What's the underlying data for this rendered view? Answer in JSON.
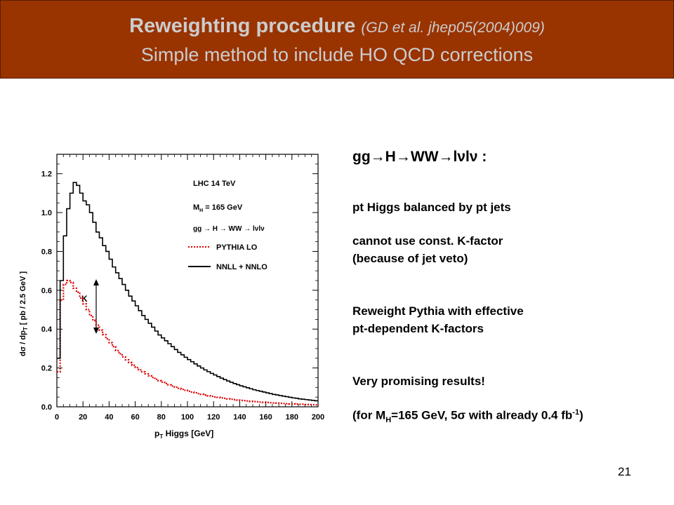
{
  "slide": {
    "title": "Reweighting procedure",
    "reference": "(GD et al. jhep05(2004)009)",
    "subtitle": "Simple method to include HO QCD corrections",
    "page_number": "21"
  },
  "notes": {
    "heading": "gg→H→WW→lνlν :",
    "line1": "pt Higgs balanced by pt jets",
    "line2": "cannot use const. K-factor",
    "line3": "(because of jet veto)",
    "line4": "Reweight Pythia with effective",
    "line5": "pt-dependent K-factors",
    "line6": "Very promising results!",
    "result_prefix": "(for M",
    "result_sub": "H",
    "result_mid": "=165 GeV, 5σ with already 0.4 fb",
    "result_sup": "-1",
    "result_suffix": ")"
  },
  "chart_data": {
    "type": "line",
    "xlabel_main": "p",
    "xlabel_sub": "T",
    "xlabel_rest": " Higgs [GeV]",
    "ylabel": "dσ / dp",
    "ylabel_sub": "T",
    "ylabel_rest": "  [ pb / 2.5 GeV ]",
    "xlim": [
      0,
      200
    ],
    "ylim": [
      0,
      1.3
    ],
    "x_ticks": [
      "0",
      "20",
      "40",
      "60",
      "80",
      "100",
      "120",
      "140",
      "160",
      "180",
      "200"
    ],
    "y_ticks": [
      "0.0",
      "0.2",
      "0.4",
      "0.6",
      "0.8",
      "1.0",
      "1.2"
    ],
    "legend": {
      "energy": "LHC 14 TeV",
      "mass_prefix": "M",
      "mass_sub": "H",
      "mass_rest": " = 165 GeV",
      "process": "gg → H → WW → lνlν"
    },
    "annotation": "K",
    "grid": false,
    "bin_width": 2.5,
    "series": [
      {
        "name": "PYTHIA LO",
        "color": "#dd0000",
        "style": "dotted",
        "values": [
          0.18,
          0.55,
          0.63,
          0.65,
          0.64,
          0.61,
          0.59,
          0.56,
          0.53,
          0.5,
          0.47,
          0.445,
          0.42,
          0.395,
          0.372,
          0.35,
          0.33,
          0.31,
          0.29,
          0.273,
          0.257,
          0.242,
          0.228,
          0.214,
          0.202,
          0.19,
          0.18,
          0.17,
          0.16,
          0.151,
          0.142,
          0.134,
          0.127,
          0.12,
          0.113,
          0.107,
          0.101,
          0.095,
          0.09,
          0.085,
          0.08,
          0.076,
          0.072,
          0.068,
          0.064,
          0.061,
          0.057,
          0.054,
          0.051,
          0.049,
          0.046,
          0.044,
          0.041,
          0.039,
          0.037,
          0.035,
          0.033,
          0.032,
          0.03,
          0.028,
          0.027,
          0.026,
          0.024,
          0.023,
          0.022,
          0.021,
          0.02,
          0.019,
          0.018,
          0.017,
          0.016,
          0.015,
          0.015,
          0.014,
          0.013,
          0.013,
          0.012,
          0.011,
          0.011,
          0.01
        ]
      },
      {
        "name": "NNLL + NNLO",
        "color": "#000000",
        "style": "solid",
        "values": [
          0.25,
          0.65,
          0.88,
          1.02,
          1.1,
          1.155,
          1.14,
          1.1,
          1.06,
          1.04,
          1.0,
          0.95,
          0.9,
          0.87,
          0.83,
          0.8,
          0.76,
          0.72,
          0.69,
          0.66,
          0.63,
          0.6,
          0.57,
          0.545,
          0.52,
          0.495,
          0.47,
          0.45,
          0.43,
          0.41,
          0.39,
          0.37,
          0.355,
          0.34,
          0.325,
          0.31,
          0.295,
          0.28,
          0.268,
          0.255,
          0.243,
          0.232,
          0.221,
          0.21,
          0.2,
          0.19,
          0.181,
          0.172,
          0.164,
          0.156,
          0.148,
          0.14,
          0.133,
          0.126,
          0.12,
          0.114,
          0.108,
          0.103,
          0.098,
          0.093,
          0.088,
          0.084,
          0.08,
          0.076,
          0.072,
          0.068,
          0.064,
          0.061,
          0.058,
          0.055,
          0.052,
          0.049,
          0.046,
          0.044,
          0.041,
          0.039,
          0.037,
          0.035,
          0.033,
          0.031
        ]
      }
    ]
  }
}
